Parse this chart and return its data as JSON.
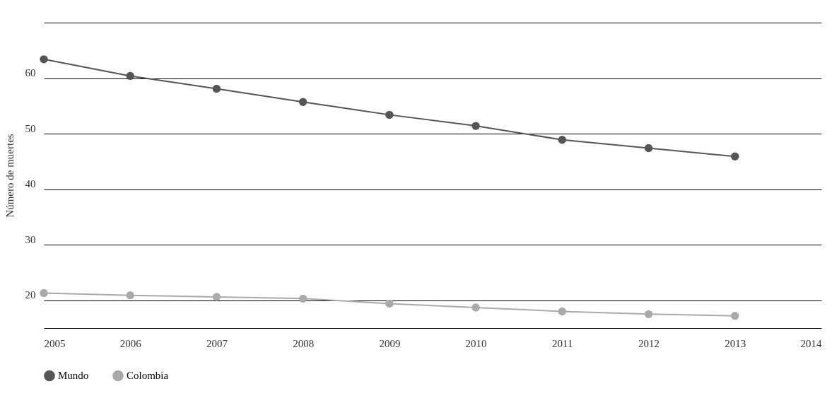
{
  "chart_data": {
    "type": "line",
    "ylabel": "Número de muertes",
    "x": [
      2005,
      2006,
      2007,
      2008,
      2009,
      2010,
      2011,
      2012,
      2013
    ],
    "xlim": [
      2005,
      2014
    ],
    "xticks": [
      2005,
      2006,
      2007,
      2008,
      2009,
      2010,
      2011,
      2012,
      2013,
      2014
    ],
    "ylim": [
      15,
      70
    ],
    "yticks": [
      20,
      30,
      40,
      50,
      60,
      {
        "value": 70,
        "label": null
      }
    ],
    "grid": "y",
    "legend": "bottom",
    "marker": "circle",
    "line_style": "solid",
    "series": [
      {
        "name": "Mundo",
        "color": "#555555",
        "values": [
          63.4,
          60.4,
          58.1,
          55.7,
          53.4,
          51.4,
          48.9,
          47.4,
          45.9
        ]
      },
      {
        "name": "Colombia",
        "color": "#aaaaaa",
        "values": [
          21.3,
          20.9,
          20.6,
          20.3,
          19.4,
          18.7,
          18.0,
          17.5,
          17.2
        ]
      }
    ]
  }
}
